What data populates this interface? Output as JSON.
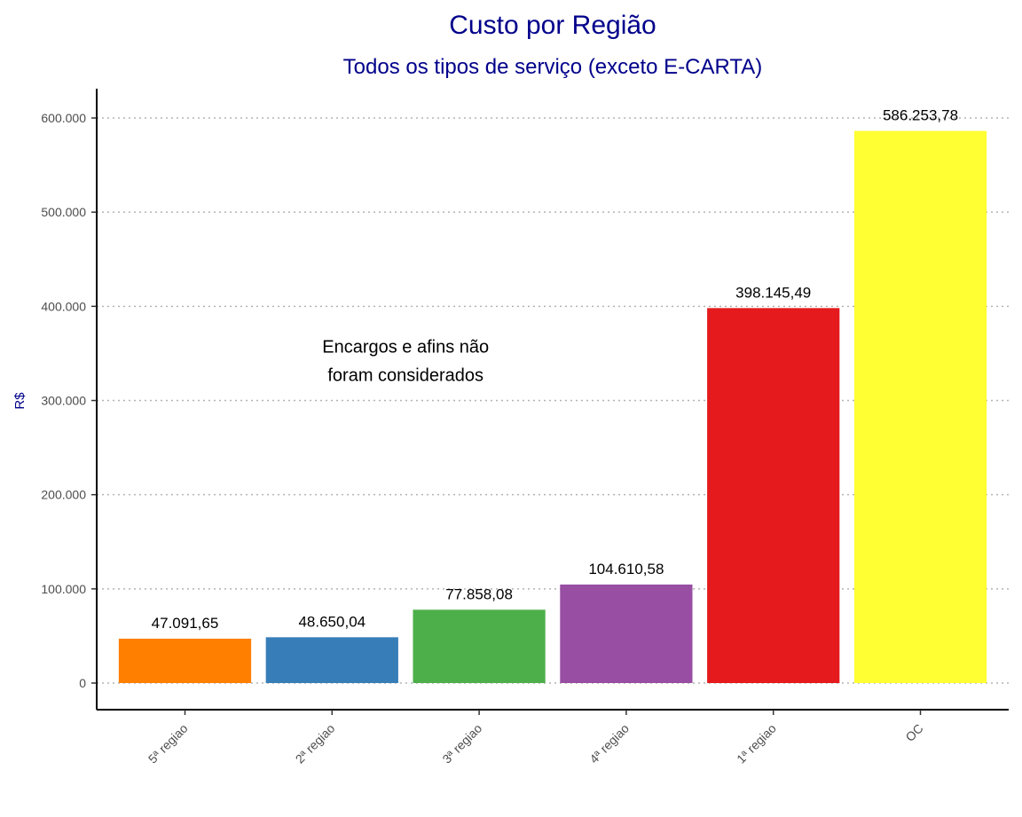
{
  "chart_data": {
    "type": "bar",
    "title": "Custo por Região",
    "subtitle": "Todos os tipos de serviço (exceto E-CARTA)",
    "xlabel": "",
    "ylabel": "R$",
    "categories": [
      "5ª regiao",
      "2ª regiao",
      "3ª regiao",
      "4ª regiao",
      "1ª regiao",
      "OC"
    ],
    "values": [
      47091.65,
      48650.04,
      77858.08,
      104610.58,
      398145.49,
      586253.78
    ],
    "value_labels": [
      "47.091,65",
      "48.650,04",
      "77.858,08",
      "104.610,58",
      "398.145,49",
      "586.253,78"
    ],
    "bar_colors": [
      "#FF7F00",
      "#377EB8",
      "#4DAF4A",
      "#984EA3",
      "#E41A1C",
      "#FFFF33"
    ],
    "ylim": [
      0,
      620000
    ],
    "yticks": [
      0,
      100000,
      200000,
      300000,
      400000,
      500000,
      600000
    ],
    "ytick_labels": [
      "0",
      "100.000",
      "200.000",
      "300.000",
      "400.000",
      "500.000",
      "600.000"
    ],
    "annotation": {
      "lines": [
        "Encargos e afins não",
        "foram considerados"
      ],
      "x_category_center": 1.5,
      "y_value": 330000
    },
    "grid": "horizontal-dotted",
    "legend": "none",
    "title_color": "#00008B",
    "ylabel_color": "#00008B"
  }
}
